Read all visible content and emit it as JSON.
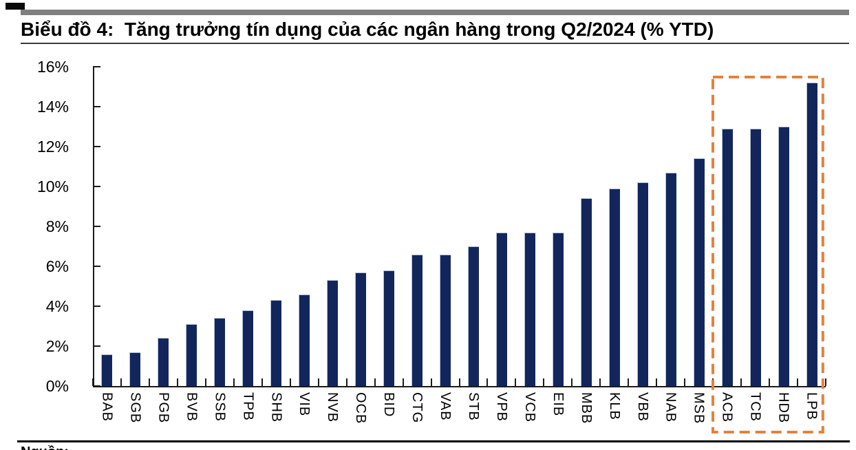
{
  "page": {
    "title": "Biểu đồ 4:  Tăng trưởng tín dụng của các ngân hàng trong Q2/2024 (% YTD)",
    "source_label_partial": "Nguồn:"
  },
  "colors": {
    "bar": "#13265C",
    "bar_edge": "#b6c2d6",
    "axis": "#1a1a1a",
    "highlight_orange": "#E5813E",
    "header_bar_gray": "#7f7f7f"
  },
  "chart_data": {
    "type": "bar",
    "title": "Biểu đồ 4:  Tăng trưởng tín dụng của các ngân hàng trong Q2/2024 (% YTD)",
    "xlabel": "",
    "ylabel": "",
    "unit": "%",
    "ylim": [
      0,
      16
    ],
    "y_tick_step": 2,
    "y_tick_labels": [
      "0%",
      "2%",
      "4%",
      "6%",
      "8%",
      "10%",
      "12%",
      "14%",
      "16%"
    ],
    "gridlines": false,
    "legend": null,
    "categories": [
      "BAB",
      "SGB",
      "PGB",
      "BVB",
      "SSB",
      "TPB",
      "SHB",
      "VIB",
      "NVB",
      "OCB",
      "BID",
      "CTG",
      "VAB",
      "STB",
      "VPB",
      "VCB",
      "EIB",
      "MBB",
      "KLB",
      "VBB",
      "NAB",
      "MSB",
      "ACB",
      "TCB",
      "HDB",
      "LPB"
    ],
    "values": [
      1.6,
      1.7,
      2.4,
      3.1,
      3.4,
      3.8,
      4.3,
      4.6,
      5.3,
      5.7,
      5.8,
      6.6,
      6.6,
      7.0,
      7.7,
      7.7,
      7.7,
      9.4,
      9.9,
      10.2,
      10.7,
      11.4,
      12.9,
      12.9,
      13.0,
      15.2
    ],
    "highlight": {
      "style": "dashed-rectangle",
      "categories": [
        "ACB",
        "TCB",
        "HDB",
        "LPB"
      ],
      "color": "#E5813E"
    }
  }
}
